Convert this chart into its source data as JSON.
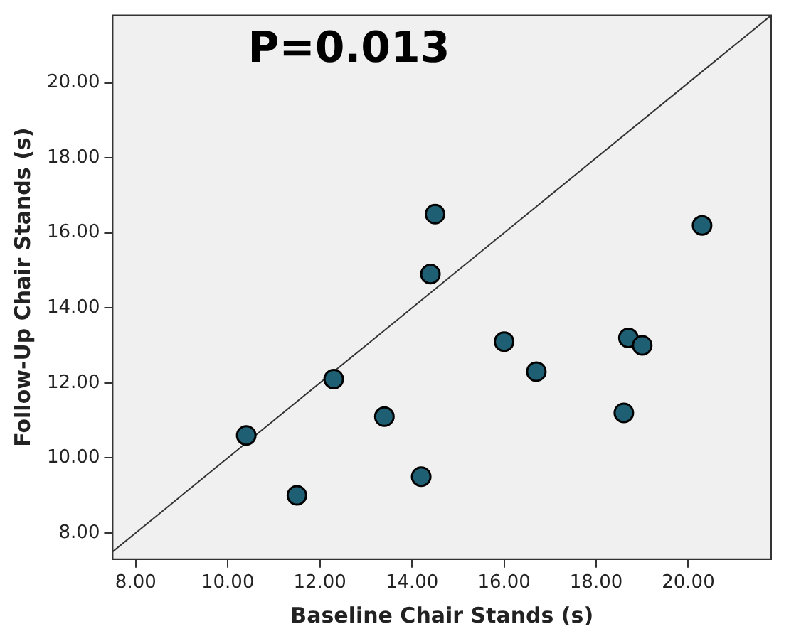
{
  "chart_data": {
    "type": "scatter",
    "xlabel": "Baseline Chair Stands (s)",
    "ylabel": "Follow-Up Chair Stands (s)",
    "annotations": [
      "P=0.013"
    ],
    "xlim": [
      7.5,
      21.8
    ],
    "ylim": [
      7.3,
      21.8
    ],
    "xticks": [
      {
        "value": 8,
        "label": "8.00"
      },
      {
        "value": 10,
        "label": "10.00"
      },
      {
        "value": 12,
        "label": "12.00"
      },
      {
        "value": 14,
        "label": "14.00"
      },
      {
        "value": 16,
        "label": "16.00"
      },
      {
        "value": 18,
        "label": "18.00"
      },
      {
        "value": 20,
        "label": "20.00"
      }
    ],
    "yticks": [
      {
        "value": 8,
        "label": "8.00"
      },
      {
        "value": 10,
        "label": "10.00"
      },
      {
        "value": 12,
        "label": "12.00"
      },
      {
        "value": 14,
        "label": "14.00"
      },
      {
        "value": 16,
        "label": "16.00"
      },
      {
        "value": 18,
        "label": "18.00"
      },
      {
        "value": 20,
        "label": "20.00"
      }
    ],
    "grid": false,
    "legend": false,
    "series": [
      {
        "marker": "circle",
        "color": "#1f5f73",
        "x": [
          10.4,
          11.5,
          12.3,
          13.4,
          14.2,
          14.4,
          14.5,
          16.0,
          16.7,
          18.6,
          18.7,
          19.0,
          20.3
        ],
        "values": [
          10.6,
          9.0,
          12.1,
          11.1,
          9.5,
          14.9,
          16.5,
          13.1,
          12.3,
          11.2,
          13.2,
          13.0,
          16.2
        ]
      },
      {
        "type": "line",
        "marker": "none",
        "color": "#333333",
        "x": [
          7.5,
          21.8
        ],
        "values": [
          7.5,
          21.8
        ]
      }
    ]
  }
}
